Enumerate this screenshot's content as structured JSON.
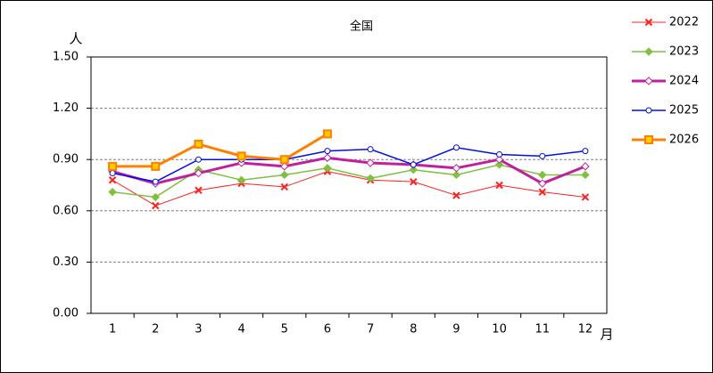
{
  "chart_data": {
    "type": "line",
    "title": "全国",
    "y_label": "人",
    "x_label": "月",
    "categories": [
      "1",
      "2",
      "3",
      "4",
      "5",
      "6",
      "7",
      "8",
      "9",
      "10",
      "11",
      "12"
    ],
    "ylim": [
      0,
      1.5
    ],
    "yticks": [
      {
        "value": 0,
        "label": "0.00"
      },
      {
        "value": 0.3,
        "label": "0.30"
      },
      {
        "value": 0.6,
        "label": "0.60"
      },
      {
        "value": 0.9,
        "label": "0.90"
      },
      {
        "value": 1.2,
        "label": "1.20"
      },
      {
        "value": 1.5,
        "label": "1.50"
      }
    ],
    "grid": true,
    "legend": "right",
    "series": [
      {
        "name": "2022",
        "color": "#ff2020",
        "marker": "x",
        "width": 1,
        "values": [
          0.78,
          0.63,
          0.72,
          0.76,
          0.74,
          0.83,
          0.78,
          0.77,
          0.69,
          0.75,
          0.71,
          0.68
        ]
      },
      {
        "name": "2023",
        "color": "#80c040",
        "marker": "diamond",
        "width": 1.5,
        "values": [
          0.71,
          0.68,
          0.84,
          0.78,
          0.81,
          0.85,
          0.79,
          0.84,
          0.81,
          0.87,
          0.81,
          0.81
        ]
      },
      {
        "name": "2024",
        "color": "#c020a0",
        "marker": "hollow-diamond",
        "width": 3,
        "values": [
          0.83,
          0.76,
          0.82,
          0.88,
          0.86,
          0.91,
          0.88,
          0.87,
          0.85,
          0.9,
          0.76,
          0.86
        ]
      },
      {
        "name": "2025",
        "color": "#0010e0",
        "marker": "circle",
        "width": 1.5,
        "values": [
          0.82,
          0.77,
          0.9,
          0.9,
          0.9,
          0.95,
          0.96,
          0.87,
          0.97,
          0.93,
          0.92,
          0.95
        ]
      },
      {
        "name": "2026",
        "color": "#ff8000",
        "marker": "square",
        "width": 3,
        "values": [
          0.86,
          0.86,
          0.99,
          0.92,
          0.9,
          1.05,
          null,
          null,
          null,
          null,
          null,
          null
        ]
      }
    ]
  }
}
